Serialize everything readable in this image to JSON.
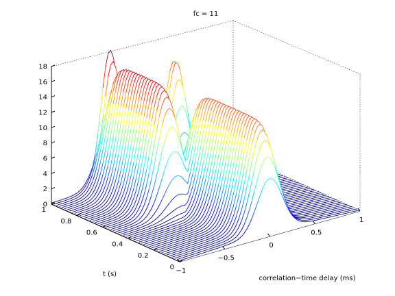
{
  "chart_data": {
    "type": "surface-mesh-3d",
    "title": "fc = 11",
    "xlabel": "correlation−time delay (ms)",
    "ylabel": "t (s)",
    "zlabel": "",
    "xlim": [
      -1,
      1
    ],
    "ylim": [
      0,
      1
    ],
    "zlim": [
      0,
      18
    ],
    "x_ticks": [
      "−1",
      "−0.5",
      "0",
      "0.5",
      "1"
    ],
    "y_ticks": [
      "0",
      "0.2",
      "0.4",
      "0.6",
      "0.8",
      "1"
    ],
    "z_ticks": [
      "0",
      "2",
      "4",
      "6",
      "8",
      "10",
      "12",
      "14",
      "16",
      "18"
    ],
    "grid": true,
    "colormap": "jet",
    "surface_model": {
      "features": [
        {
          "name": "ridge-near",
          "x_center": 0.0,
          "t_start": 0.0,
          "t_end": 0.6,
          "peak_height": 14,
          "width_ms": 0.25
        },
        {
          "name": "ridge-far",
          "x_center": -0.35,
          "t_start": 0.5,
          "t_end": 1.0,
          "peak_height": 16,
          "width_ms": 0.25
        },
        {
          "name": "peak-a",
          "x_center": -0.35,
          "t_at": 1.0,
          "peak_height": 17.5
        },
        {
          "name": "peak-b",
          "x_center": 0.3,
          "t_at": 0.95,
          "peak_height": 14.5
        }
      ]
    }
  }
}
